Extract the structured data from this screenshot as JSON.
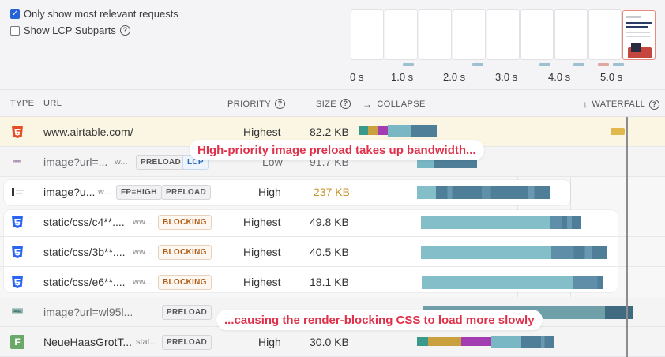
{
  "filters": {
    "relevant_label": "Only show most relevant requests",
    "lcp_label": "Show LCP Subparts"
  },
  "timeline": {
    "labels": [
      "0 s",
      "1.0 s",
      "2.0 s",
      "3.0 s",
      "4.0 s",
      "5.0 s"
    ]
  },
  "table_header": {
    "type": "TYPE",
    "url": "URL",
    "priority": "PRIORITY",
    "size": "SIZE",
    "collapse": "COLLAPSE",
    "collapse_arrow": "→",
    "waterfall": "WATERFALL",
    "waterfall_arrow": "↓"
  },
  "rows": [
    {
      "type_icon": "html-icon",
      "url": "www.airtable.com/",
      "hint": "",
      "badges": [],
      "priority": "Highest",
      "size": "82.2 KB"
    },
    {
      "type_icon": "image-icon",
      "url": "image?url=...",
      "hint": "w...",
      "badges": [
        "PRELOAD",
        "LCP"
      ],
      "priority": "Low",
      "size": "91.7 KB"
    },
    {
      "type_icon": "image-icon",
      "url": "image?u...",
      "hint": "w...",
      "badges": [
        "FP=HIGH",
        "PRELOAD"
      ],
      "priority": "High",
      "size": "237 KB"
    },
    {
      "type_icon": "css-icon",
      "url": "static/css/c4**....",
      "hint": "ww...",
      "badges": [
        "BLOCKING"
      ],
      "priority": "Highest",
      "size": "49.8 KB"
    },
    {
      "type_icon": "css-icon",
      "url": "static/css/3b**....",
      "hint": "ww...",
      "badges": [
        "BLOCKING"
      ],
      "priority": "Highest",
      "size": "40.5 KB"
    },
    {
      "type_icon": "css-icon",
      "url": "static/css/e6**....",
      "hint": "ww...",
      "badges": [
        "BLOCKING"
      ],
      "priority": "Highest",
      "size": "18.1 KB"
    },
    {
      "type_icon": "image-icon",
      "url": "image?url=wl95l...",
      "hint": "",
      "badges": [
        "PRELOAD"
      ],
      "priority": "",
      "size": ""
    },
    {
      "type_icon": "font-icon",
      "url": "NeueHaasGrotT...",
      "hint": "stat...",
      "badges": [
        "PRELOAD"
      ],
      "priority": "High",
      "size": "30.0 KB"
    }
  ],
  "font_icon_letter": "F",
  "callouts": {
    "top": "HIgh-priority image preload takes up bandwidth...",
    "bottom": "...causing the render-blocking CSS to load more slowly"
  },
  "colors": {
    "callout_text": "#e0314b",
    "bar_light": "#84bec8",
    "bar_dark": "#4f7f98",
    "lcp_marker": "#e0b84c",
    "preload_size": "#c8932c"
  }
}
